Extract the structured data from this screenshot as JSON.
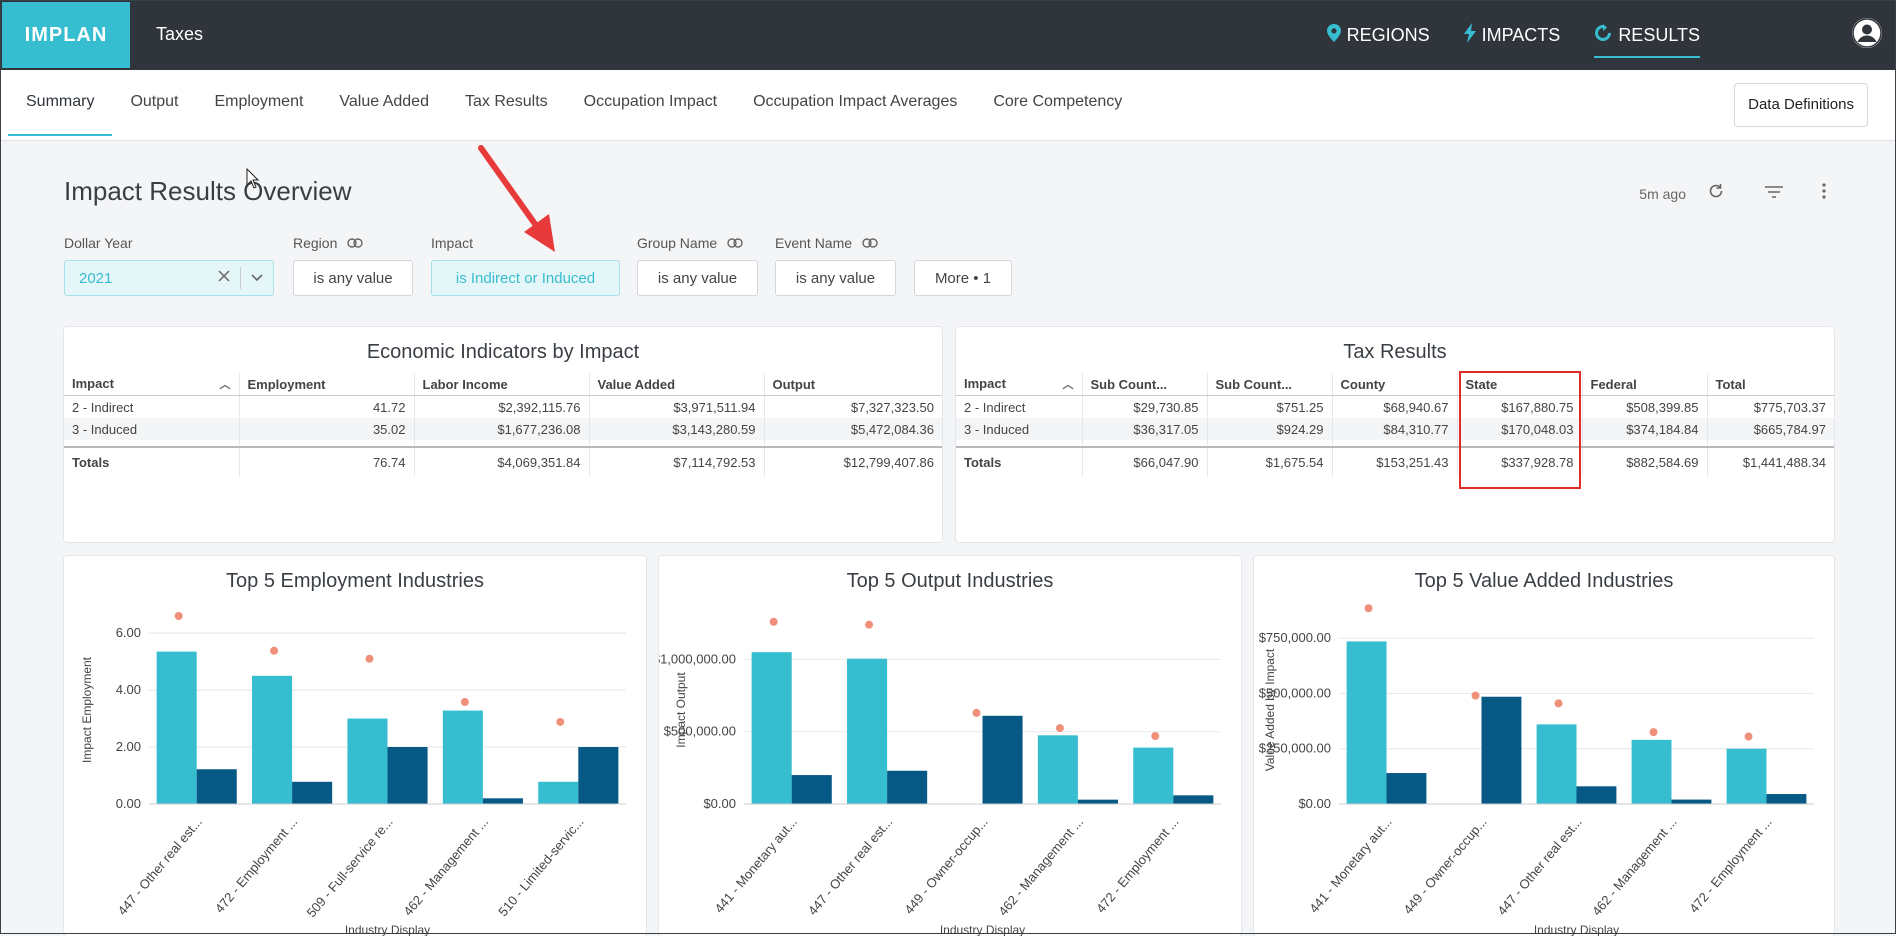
{
  "app": {
    "logo": "IMPLAN",
    "title": "Taxes"
  },
  "topnav": {
    "items": [
      {
        "label": "REGIONS",
        "icon": "map-pin-icon"
      },
      {
        "label": "IMPACTS",
        "icon": "lightning-icon"
      },
      {
        "label": "RESULTS",
        "icon": "refresh-circle-icon",
        "active": true
      }
    ]
  },
  "tabs": [
    "Summary",
    "Output",
    "Employment",
    "Value Added",
    "Tax Results",
    "Occupation Impact",
    "Occupation Impact Averages",
    "Core Competency"
  ],
  "active_tab": "Summary",
  "data_definitions": "Data Definitions",
  "page": {
    "title": "Impact Results Overview",
    "updated": "5m ago"
  },
  "filters": {
    "dollar_year": {
      "label": "Dollar Year",
      "value": "2021"
    },
    "region": {
      "label": "Region",
      "value": "is any value"
    },
    "impact": {
      "label": "Impact",
      "value": "is Indirect or Induced"
    },
    "group_name": {
      "label": "Group Name",
      "value": "is any value"
    },
    "event_name": {
      "label": "Event Name",
      "value": "is any value"
    },
    "more": "More • 1"
  },
  "economic": {
    "title": "Economic Indicators by Impact",
    "headers": [
      "Impact",
      "Employment",
      "Labor Income",
      "Value Added",
      "Output"
    ],
    "rows": [
      [
        "2 - Indirect",
        "41.72",
        "$2,392,115.76",
        "$3,971,511.94",
        "$7,327,323.50"
      ],
      [
        "3 - Induced",
        "35.02",
        "$1,677,236.08",
        "$3,143,280.59",
        "$5,472,084.36"
      ]
    ],
    "totals": [
      "Totals",
      "76.74",
      "$4,069,351.84",
      "$7,114,792.53",
      "$12,799,407.86"
    ]
  },
  "tax": {
    "title": "Tax Results",
    "headers": [
      "Impact",
      "Sub Count...",
      "Sub Count...",
      "County",
      "State",
      "Federal",
      "Total"
    ],
    "rows": [
      [
        "2 - Indirect",
        "$29,730.85",
        "$751.25",
        "$68,940.67",
        "$167,880.75",
        "$508,399.85",
        "$775,703.37"
      ],
      [
        "3 - Induced",
        "$36,317.05",
        "$924.29",
        "$84,310.77",
        "$170,048.03",
        "$374,184.84",
        "$665,784.97"
      ]
    ],
    "totals": [
      "Totals",
      "$66,047.90",
      "$1,675.54",
      "$153,251.43",
      "$337,928.78",
      "$882,584.69",
      "$1,441,488.34"
    ]
  },
  "colors": {
    "indirect": "#37bdd0",
    "induced": "#075985",
    "dot": "#f0907a",
    "accent": "#37bdd0",
    "highlight": "#e02b2b"
  },
  "chart_data": [
    {
      "type": "bar",
      "title": "Top 5 Employment Industries",
      "ylabel": "Impact Employment",
      "xlabel": "Industry Display",
      "categories": [
        "447 - Other real est...",
        "472 - Employment ...",
        "509 - Full-service re...",
        "462 - Management ...",
        "510 - Limited-servic..."
      ],
      "series": [
        {
          "values": [
            5.35,
            4.5,
            3.0,
            3.28,
            0.78
          ]
        },
        {
          "values": [
            1.22,
            0.78,
            2.0,
            0.2,
            2.0
          ]
        }
      ],
      "markers": [
        6.6,
        5.38,
        5.1,
        3.58,
        2.88
      ],
      "yticks": [
        "0.00",
        "2.00",
        "4.00",
        "6.00"
      ],
      "ylim": [
        0,
        6.6
      ]
    },
    {
      "type": "bar",
      "title": "Top 5 Output Industries",
      "ylabel": "Impact Output",
      "xlabel": "Industry Display",
      "categories": [
        "441 - Monetary aut...",
        "447 - Other real est...",
        "449 - Owner-occup...",
        "462 - Management ...",
        "472 - Employment ..."
      ],
      "series": [
        {
          "values": [
            1050000,
            1005000,
            0,
            475000,
            390000
          ]
        },
        {
          "values": [
            200000,
            230000,
            610000,
            30000,
            60000
          ]
        }
      ],
      "markers": [
        1260000,
        1240000,
        630000,
        525000,
        470000
      ],
      "yticks": [
        "$0.00",
        "$500,000.00",
        "$1,000,000.00"
      ],
      "ylim": [
        0,
        1300000
      ]
    },
    {
      "type": "bar",
      "title": "Top 5 Value Added Industries",
      "ylabel": "Value Added by Impact",
      "xlabel": "Industry Display",
      "categories": [
        "441 - Monetary aut...",
        "449 - Owner-occup...",
        "447 - Other real est...",
        "462 - Management ...",
        "472 - Employment ..."
      ],
      "series": [
        {
          "values": [
            735000,
            0,
            360000,
            290000,
            250000
          ]
        },
        {
          "values": [
            140000,
            485000,
            80000,
            20000,
            45000
          ]
        }
      ],
      "markers": [
        885000,
        490000,
        455000,
        325000,
        305000
      ],
      "yticks": [
        "$0.00",
        "$250,000.00",
        "$500,000.00",
        "$750,000.00"
      ],
      "ylim": [
        0,
        850000
      ]
    }
  ]
}
